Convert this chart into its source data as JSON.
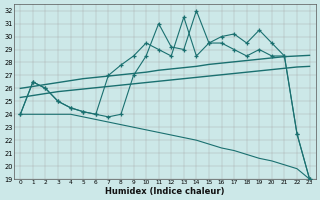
{
  "xlabel": "Humidex (Indice chaleur)",
  "background_color": "#cce8e8",
  "line_color": "#1a7070",
  "x": [
    0,
    1,
    2,
    3,
    4,
    5,
    6,
    7,
    8,
    9,
    10,
    11,
    12,
    13,
    14,
    15,
    16,
    17,
    18,
    19,
    20,
    21,
    22,
    23
  ],
  "y_jagged": [
    24.0,
    26.5,
    26.0,
    25.0,
    24.5,
    24.2,
    24.0,
    23.8,
    24.0,
    27.0,
    28.5,
    31.0,
    29.2,
    29.0,
    32.0,
    29.5,
    30.0,
    30.2,
    29.5,
    30.5,
    29.5,
    28.5,
    22.5,
    19.0
  ],
  "y_jagged2": [
    24.0,
    26.5,
    26.0,
    25.0,
    24.5,
    24.2,
    24.0,
    27.0,
    27.8,
    28.5,
    29.5,
    29.0,
    28.5,
    31.5,
    28.5,
    29.5,
    29.5,
    29.0,
    28.5,
    29.0,
    28.5,
    28.5,
    22.5,
    19.0
  ],
  "y_upper": [
    26.0,
    26.15,
    26.3,
    26.45,
    26.6,
    26.75,
    26.85,
    26.95,
    27.05,
    27.15,
    27.25,
    27.4,
    27.5,
    27.6,
    27.7,
    27.85,
    27.95,
    28.05,
    28.15,
    28.25,
    28.35,
    28.45,
    28.5,
    28.55
  ],
  "y_lower": [
    25.3,
    25.45,
    25.6,
    25.75,
    25.85,
    25.95,
    26.05,
    26.15,
    26.25,
    26.35,
    26.45,
    26.55,
    26.65,
    26.75,
    26.85,
    26.95,
    27.05,
    27.15,
    27.25,
    27.35,
    27.45,
    27.55,
    27.65,
    27.7
  ],
  "y_diag": [
    24.0,
    24.0,
    24.0,
    24.0,
    24.0,
    23.8,
    23.6,
    23.4,
    23.2,
    23.0,
    22.8,
    22.6,
    22.4,
    22.2,
    22.0,
    21.7,
    21.4,
    21.2,
    20.9,
    20.6,
    20.4,
    20.1,
    19.8,
    19.0
  ],
  "ylim": [
    19,
    32.5
  ],
  "xlim": [
    -0.5,
    23.5
  ],
  "yticks": [
    19,
    20,
    21,
    22,
    23,
    24,
    25,
    26,
    27,
    28,
    29,
    30,
    31,
    32
  ],
  "xticks": [
    0,
    1,
    2,
    3,
    4,
    5,
    6,
    7,
    8,
    9,
    10,
    11,
    12,
    13,
    14,
    15,
    16,
    17,
    18,
    19,
    20,
    21,
    22,
    23
  ]
}
